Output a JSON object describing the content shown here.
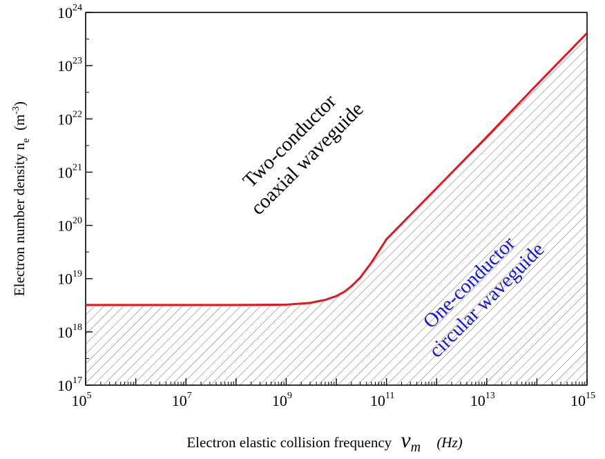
{
  "chart_data": {
    "type": "line",
    "title": "",
    "xlabel": {
      "main": "Electron elastic collision frequency",
      "symbol": "ν",
      "symbol_sub": "m",
      "unit": "(Hz)"
    },
    "ylabel": {
      "main": "Electron number density n",
      "sub": "e",
      "unit_open": "(m",
      "unit_exp": "-3",
      "unit_close": ")"
    },
    "x_scale": "log",
    "y_scale": "log",
    "xlim": [
      100000,
      1000000000000000
    ],
    "ylim": [
      100000000000000000,
      1000000000000000000000000
    ],
    "x_ticks": [
      {
        "base": "10",
        "exp": "5",
        "value": 100000
      },
      {
        "base": "10",
        "exp": "7",
        "value": 10000000
      },
      {
        "base": "10",
        "exp": "9",
        "value": 1000000000
      },
      {
        "base": "10",
        "exp": "11",
        "value": 100000000000
      },
      {
        "base": "10",
        "exp": "13",
        "value": 10000000000000
      },
      {
        "base": "10",
        "exp": "15",
        "value": 1000000000000000
      }
    ],
    "y_ticks": [
      {
        "base": "10",
        "exp": "17",
        "value": 1e+17
      },
      {
        "base": "10",
        "exp": "18",
        "value": 1e+18
      },
      {
        "base": "10",
        "exp": "19",
        "value": 1e+19
      },
      {
        "base": "10",
        "exp": "20",
        "value": 1e+20
      },
      {
        "base": "10",
        "exp": "21",
        "value": 1e+21
      },
      {
        "base": "10",
        "exp": "22",
        "value": 1e+22
      },
      {
        "base": "10",
        "exp": "23",
        "value": 1e+23
      },
      {
        "base": "10",
        "exp": "24",
        "value": 1e+24
      }
    ],
    "series": [
      {
        "color": "#e8141b",
        "x": [
          100000.0,
          1000000.0,
          10000000.0,
          100000000.0,
          1000000000.0,
          3000000000.0,
          6000000000.0,
          10000000000.0,
          15000000000.0,
          20000000000.0,
          30000000000.0,
          50000000000.0,
          100000000000.0,
          1000000000000.0,
          10000000000000.0,
          100000000000000.0,
          1000000000000000.0
        ],
        "y": [
          3.2e+18,
          3.2e+18,
          3.2e+18,
          3.2e+18,
          3.25e+18,
          3.5e+18,
          4e+18,
          4.7e+18,
          5.8e+18,
          7.2e+18,
          1.05e+19,
          2e+19,
          5.5e+19,
          5e+20,
          4.6e+21,
          4.4e+22,
          4.1e+23
        ]
      }
    ],
    "regions": [
      {
        "lines": [
          "Two-conductor",
          "coaxial waveguide"
        ],
        "color": "#000000"
      },
      {
        "lines": [
          "One-conductor",
          "circular waveguide"
        ],
        "color": "#1515e0",
        "hatched": true
      }
    ],
    "grid": false,
    "legend": "none"
  }
}
